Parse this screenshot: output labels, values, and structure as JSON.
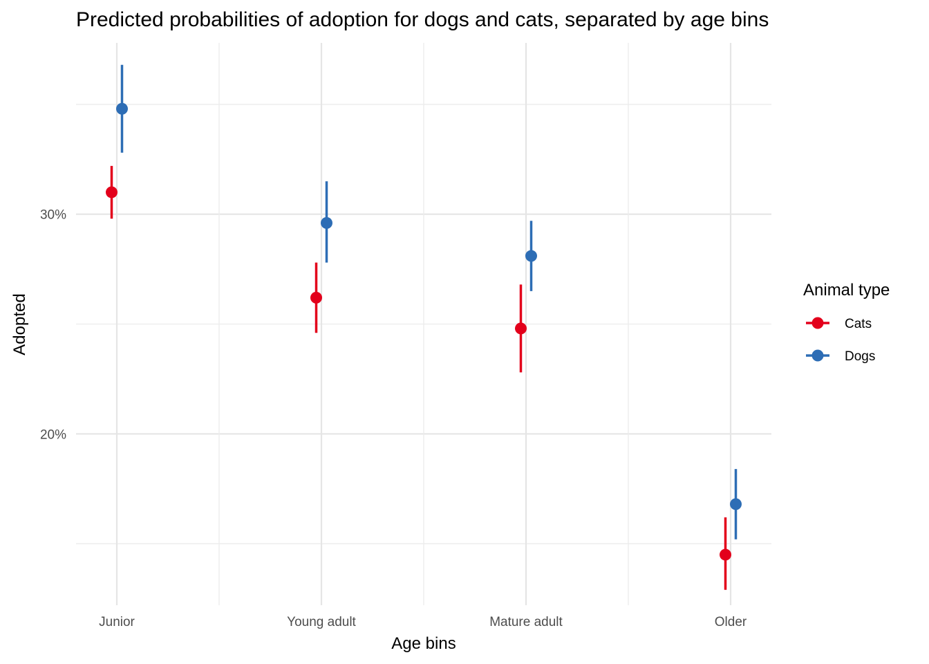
{
  "chart_data": {
    "type": "scatter",
    "title": "Predicted probabilities of adoption for dogs and cats, separated by age bins",
    "xlabel": "Age bins",
    "ylabel": "Adopted",
    "categories": [
      "Junior",
      "Young adult",
      "Mature adult",
      "Older"
    ],
    "ylim": [
      0.122,
      0.378
    ],
    "y_ticks": [
      0.2,
      0.3
    ],
    "y_tick_labels": [
      "20%",
      "30%"
    ],
    "grid": true,
    "legend": {
      "title": "Animal type",
      "placement": "right"
    },
    "series": [
      {
        "name": "Cats",
        "color": "#e3001b",
        "values": [
          0.31,
          0.262,
          0.248,
          0.145
        ],
        "lower": [
          0.298,
          0.246,
          0.228,
          0.129
        ],
        "upper": [
          0.322,
          0.278,
          0.268,
          0.162
        ]
      },
      {
        "name": "Dogs",
        "color": "#2d6db5",
        "values": [
          0.348,
          0.296,
          0.281,
          0.168
        ],
        "lower": [
          0.328,
          0.278,
          0.265,
          0.152
        ],
        "upper": [
          0.368,
          0.315,
          0.297,
          0.184
        ]
      }
    ]
  }
}
